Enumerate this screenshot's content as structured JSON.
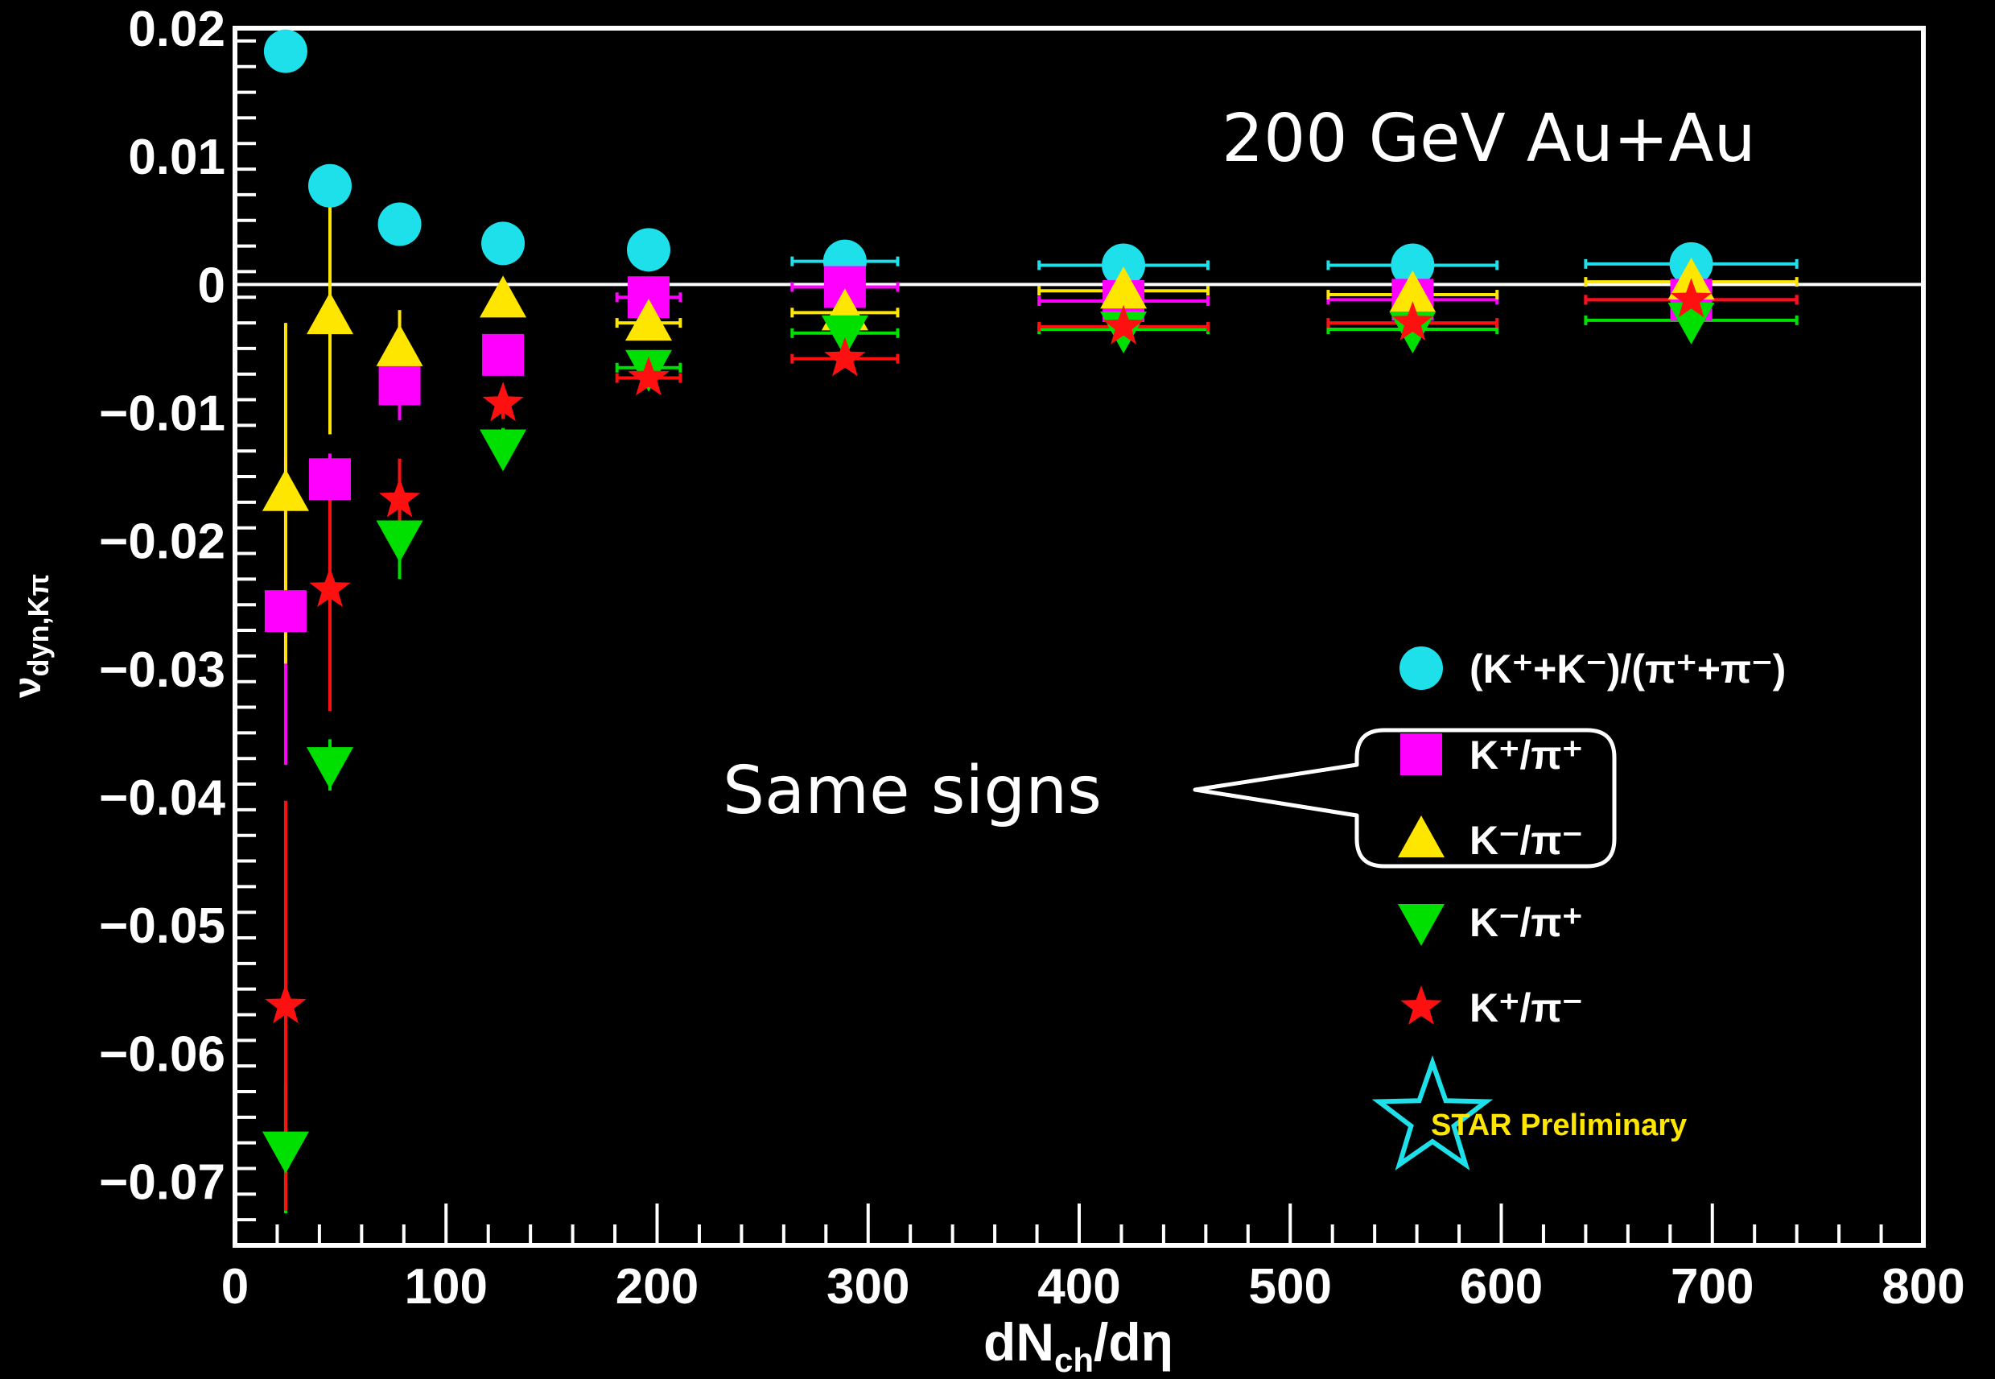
{
  "chart_data": {
    "type": "scatter",
    "title": "",
    "xlabel": "dN_ch/dη",
    "ylabel": "ν_dyn,Kπ",
    "xlim": [
      0,
      800
    ],
    "ylim": [
      -0.075,
      0.02
    ],
    "x_ticks": [
      "0",
      "100",
      "200",
      "300",
      "400",
      "500",
      "600",
      "700",
      "800"
    ],
    "y_ticks": [
      "0.02",
      "0.01",
      "0",
      "−0.01",
      "−0.02",
      "−0.03",
      "−0.04",
      "−0.05",
      "−0.06",
      "−0.07"
    ],
    "grid": false,
    "zero_line": true,
    "legend_position": "right-lower",
    "series": [
      {
        "name": "(K⁺+K⁻)/(π⁺+π⁻)",
        "marker": "circle",
        "color": "#1ee0ea",
        "points": [
          {
            "x": 24,
            "y": 0.0182
          },
          {
            "x": 45,
            "y": 0.0077
          },
          {
            "x": 78,
            "y": 0.0047
          },
          {
            "x": 127,
            "y": 0.0032
          },
          {
            "x": 196,
            "y": 0.0027
          },
          {
            "x": 289,
            "y": 0.0018,
            "xerr": 25
          },
          {
            "x": 421,
            "y": 0.0015,
            "xerr": 40
          },
          {
            "x": 558,
            "y": 0.0015,
            "xerr": 40
          },
          {
            "x": 690,
            "y": 0.0016,
            "xerr": 50
          }
        ]
      },
      {
        "name": "K⁺/π⁺",
        "marker": "square",
        "color": "#ff00ff",
        "points": [
          {
            "x": 24,
            "y": -0.0255,
            "yerr": 0.012
          },
          {
            "x": 45,
            "y": -0.0152,
            "yerr": 0.002
          },
          {
            "x": 78,
            "y": -0.0078,
            "yerr": 0.0028
          },
          {
            "x": 127,
            "y": -0.0055
          },
          {
            "x": 196,
            "y": -0.001,
            "xerr": 15
          },
          {
            "x": 289,
            "y": -0.0002,
            "xerr": 25
          },
          {
            "x": 421,
            "y": -0.0013,
            "xerr": 40
          },
          {
            "x": 558,
            "y": -0.0012,
            "xerr": 40
          },
          {
            "x": 690,
            "y": -0.0012,
            "xerr": 50
          }
        ]
      },
      {
        "name": "K⁻/π⁻",
        "marker": "triangle-up",
        "color": "#ffe600",
        "points": [
          {
            "x": 24,
            "y": -0.0163,
            "yerr": 0.0133
          },
          {
            "x": 45,
            "y": -0.0025,
            "yerr": 0.0092
          },
          {
            "x": 78,
            "y": -0.005,
            "yerr": 0.003
          },
          {
            "x": 127,
            "y": -0.0012
          },
          {
            "x": 196,
            "y": -0.003,
            "xerr": 15
          },
          {
            "x": 289,
            "y": -0.0022,
            "xerr": 25
          },
          {
            "x": 421,
            "y": -0.0005,
            "xerr": 40
          },
          {
            "x": 558,
            "y": -0.0008,
            "xerr": 40
          },
          {
            "x": 690,
            "y": 0.0002,
            "xerr": 50
          }
        ]
      },
      {
        "name": "K⁻/π⁺",
        "marker": "triangle-down",
        "color": "#00e000",
        "points": [
          {
            "x": 24,
            "y": -0.0675,
            "yerr": 0.005
          },
          {
            "x": 45,
            "y": -0.0375,
            "yerr": 0.002
          },
          {
            "x": 78,
            "y": -0.0198,
            "yerr": 0.0032
          },
          {
            "x": 127,
            "y": -0.0127,
            "yerr": 0.0015
          },
          {
            "x": 196,
            "y": -0.0065,
            "xerr": 15
          },
          {
            "x": 289,
            "y": -0.0038,
            "xerr": 25
          },
          {
            "x": 421,
            "y": -0.0035,
            "xerr": 40
          },
          {
            "x": 558,
            "y": -0.0035,
            "xerr": 40
          },
          {
            "x": 690,
            "y": -0.0028,
            "xerr": 50
          }
        ]
      },
      {
        "name": "K⁺/π⁻",
        "marker": "star",
        "color": "#ff1010",
        "points": [
          {
            "x": 24,
            "y": -0.0563,
            "yerr": 0.016
          },
          {
            "x": 45,
            "y": -0.0238,
            "yerr": 0.0095
          },
          {
            "x": 78,
            "y": -0.0168,
            "yerr": 0.0032
          },
          {
            "x": 127,
            "y": -0.0093,
            "yerr": 0.0012
          },
          {
            "x": 196,
            "y": -0.0073,
            "xerr": 15
          },
          {
            "x": 289,
            "y": -0.0058,
            "xerr": 25
          },
          {
            "x": 421,
            "y": -0.0033,
            "xerr": 40
          },
          {
            "x": 558,
            "y": -0.003,
            "xerr": 40
          },
          {
            "x": 690,
            "y": -0.0012,
            "xerr": 50
          }
        ]
      }
    ],
    "annotations": {
      "system": "200 GeV Au+Au",
      "callout": "Same signs",
      "star_label": "STAR Preliminary"
    }
  },
  "colors": {
    "background": "#000000",
    "axis": "#ffffff",
    "zero_line": "#ffffff",
    "star_logo": "#1ee0ea",
    "star_text": "#ffe600"
  }
}
